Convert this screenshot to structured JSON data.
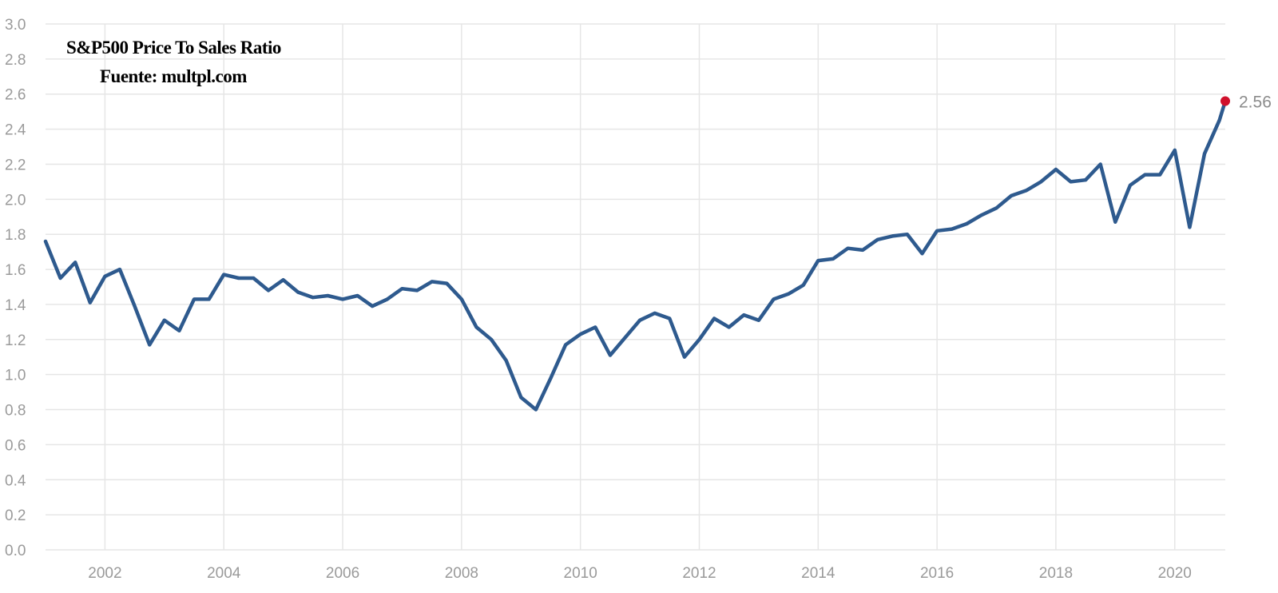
{
  "chart_data": {
    "type": "line",
    "title": "S&P500 Price To Sales Ratio",
    "subtitle": "Fuente: multpl.com",
    "xlabel": "",
    "ylabel": "",
    "xlim": [
      2001.0,
      2020.85
    ],
    "ylim": [
      0.0,
      3.0
    ],
    "grid": true,
    "y_ticks": [
      "0.0",
      "0.2",
      "0.4",
      "0.6",
      "0.8",
      "1.0",
      "1.2",
      "1.4",
      "1.6",
      "1.8",
      "2.0",
      "2.2",
      "2.4",
      "2.6",
      "2.8",
      "3.0"
    ],
    "x_ticks": [
      "2002",
      "2004",
      "2006",
      "2008",
      "2010",
      "2012",
      "2014",
      "2016",
      "2018",
      "2020"
    ],
    "series": [
      {
        "color": "#2e5a8e",
        "x": [
          2001.0,
          2001.25,
          2001.5,
          2001.75,
          2002.0,
          2002.25,
          2002.5,
          2002.75,
          2003.0,
          2003.25,
          2003.5,
          2003.75,
          2004.0,
          2004.25,
          2004.5,
          2004.75,
          2005.0,
          2005.25,
          2005.5,
          2005.75,
          2006.0,
          2006.25,
          2006.5,
          2006.75,
          2007.0,
          2007.25,
          2007.5,
          2007.75,
          2008.0,
          2008.25,
          2008.5,
          2008.75,
          2009.0,
          2009.25,
          2009.5,
          2009.75,
          2010.0,
          2010.25,
          2010.5,
          2010.75,
          2011.0,
          2011.25,
          2011.5,
          2011.75,
          2012.0,
          2012.25,
          2012.5,
          2012.75,
          2013.0,
          2013.25,
          2013.5,
          2013.75,
          2014.0,
          2014.25,
          2014.5,
          2014.75,
          2015.0,
          2015.25,
          2015.5,
          2015.75,
          2016.0,
          2016.25,
          2016.5,
          2016.75,
          2017.0,
          2017.25,
          2017.5,
          2017.75,
          2018.0,
          2018.25,
          2018.5,
          2018.75,
          2019.0,
          2019.25,
          2019.5,
          2019.75,
          2020.0,
          2020.25,
          2020.5,
          2020.75,
          2020.85
        ],
        "values": [
          1.76,
          1.55,
          1.64,
          1.41,
          1.56,
          1.6,
          1.39,
          1.17,
          1.31,
          1.25,
          1.43,
          1.43,
          1.57,
          1.55,
          1.55,
          1.48,
          1.54,
          1.47,
          1.44,
          1.45,
          1.43,
          1.45,
          1.39,
          1.43,
          1.49,
          1.48,
          1.53,
          1.52,
          1.43,
          1.27,
          1.2,
          1.08,
          0.87,
          0.8,
          0.98,
          1.17,
          1.23,
          1.27,
          1.11,
          1.21,
          1.31,
          1.35,
          1.32,
          1.1,
          1.2,
          1.32,
          1.27,
          1.34,
          1.31,
          1.43,
          1.46,
          1.51,
          1.65,
          1.66,
          1.72,
          1.71,
          1.77,
          1.79,
          1.8,
          1.69,
          1.82,
          1.83,
          1.86,
          1.91,
          1.95,
          2.02,
          2.05,
          2.1,
          2.17,
          2.1,
          2.11,
          2.2,
          1.87,
          2.08,
          2.14,
          2.14,
          2.28,
          1.84,
          2.26,
          2.45,
          2.56
        ]
      }
    ],
    "last_value_label": "2.56",
    "marker_color": "#d0102c"
  }
}
